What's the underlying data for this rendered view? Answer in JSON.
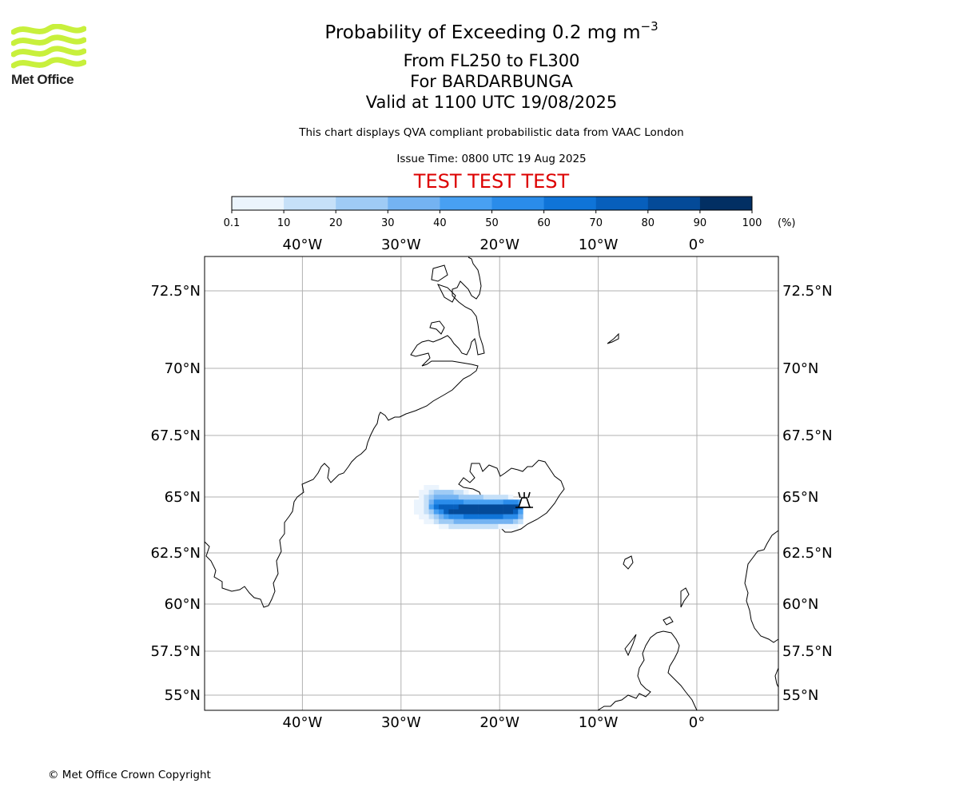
{
  "brand": {
    "logo_text": "Met Office",
    "logo_color": "#c8f03c"
  },
  "header": {
    "title_prefix": "Probability of Exceeding 0.2 mg m",
    "title_exponent": "−3",
    "level_range": "From FL250 to FL300",
    "volcano": "For BARDARBUNGA",
    "valid_time": "Valid at 1100 UTC 19/08/2025",
    "description": "This chart displays QVA compliant probabilistic data from VAAC London",
    "issue_time": "Issue Time: 0800 UTC 19 Aug 2025",
    "test_banner": "TEST TEST TEST",
    "test_banner_color": "#dd0000"
  },
  "colorbar": {
    "ticks": [
      "0.1",
      "10",
      "20",
      "30",
      "40",
      "50",
      "60",
      "70",
      "80",
      "90",
      "100"
    ],
    "unit": "(%)",
    "colors": [
      "#ebf4fd",
      "#c6e0f8",
      "#9fcbf5",
      "#74b3f2",
      "#48a0f2",
      "#2a8cea",
      "#0f74d8",
      "#075fbc",
      "#044a98",
      "#022f63"
    ]
  },
  "map": {
    "lon_labels": [
      "40°W",
      "30°W",
      "20°W",
      "10°W",
      "0°"
    ],
    "lat_labels": [
      "72.5°N",
      "70°N",
      "67.5°N",
      "65°N",
      "62.5°N",
      "60°N",
      "57.5°N",
      "55°N"
    ],
    "lon_values": [
      -40,
      -30,
      -20,
      -10,
      0
    ],
    "lat_values": [
      72.5,
      70,
      67.5,
      65,
      62.5,
      60,
      57.5,
      55
    ],
    "volcano_marker": "volcano-symbol",
    "ash_probability_grid": [
      [
        0,
        0,
        1,
        1,
        1,
        0,
        0,
        0,
        0,
        0,
        0,
        0,
        0,
        0,
        0,
        0,
        0,
        0,
        0,
        0,
        0,
        0,
        0,
        0
      ],
      [
        0,
        1,
        1,
        2,
        3,
        3,
        3,
        3,
        2,
        2,
        1,
        0,
        0,
        0,
        0,
        0,
        0,
        0,
        0,
        0,
        0,
        0,
        0,
        0
      ],
      [
        0,
        1,
        2,
        3,
        4,
        4,
        4,
        4,
        4,
        3,
        3,
        3,
        3,
        3,
        2,
        2,
        2,
        2,
        2,
        1,
        0,
        0,
        0,
        0
      ],
      [
        1,
        1,
        2,
        4,
        6,
        6,
        6,
        6,
        6,
        6,
        5,
        5,
        5,
        5,
        5,
        5,
        5,
        5,
        6,
        6,
        6,
        5,
        0,
        0
      ],
      [
        1,
        1,
        2,
        5,
        7,
        8,
        8,
        8,
        8,
        9,
        9,
        9,
        9,
        9,
        9,
        9,
        9,
        9,
        9,
        9,
        9,
        8,
        0,
        0
      ],
      [
        1,
        1,
        2,
        3,
        5,
        6,
        8,
        9,
        9,
        9,
        9,
        9,
        9,
        9,
        9,
        9,
        9,
        9,
        9,
        9,
        8,
        5,
        0,
        0
      ],
      [
        0,
        1,
        1,
        2,
        3,
        4,
        5,
        6,
        6,
        6,
        7,
        7,
        7,
        7,
        7,
        7,
        7,
        7,
        6,
        6,
        6,
        4,
        0,
        0
      ],
      [
        0,
        0,
        1,
        1,
        2,
        3,
        3,
        3,
        4,
        4,
        4,
        4,
        4,
        4,
        4,
        4,
        4,
        4,
        4,
        4,
        3,
        2,
        0,
        0
      ],
      [
        0,
        0,
        0,
        0,
        0,
        1,
        1,
        2,
        2,
        2,
        2,
        2,
        2,
        2,
        2,
        2,
        2,
        1,
        1,
        1,
        1,
        0,
        0,
        0
      ]
    ]
  },
  "footer": {
    "copyright": "© Met Office Crown Copyright"
  }
}
